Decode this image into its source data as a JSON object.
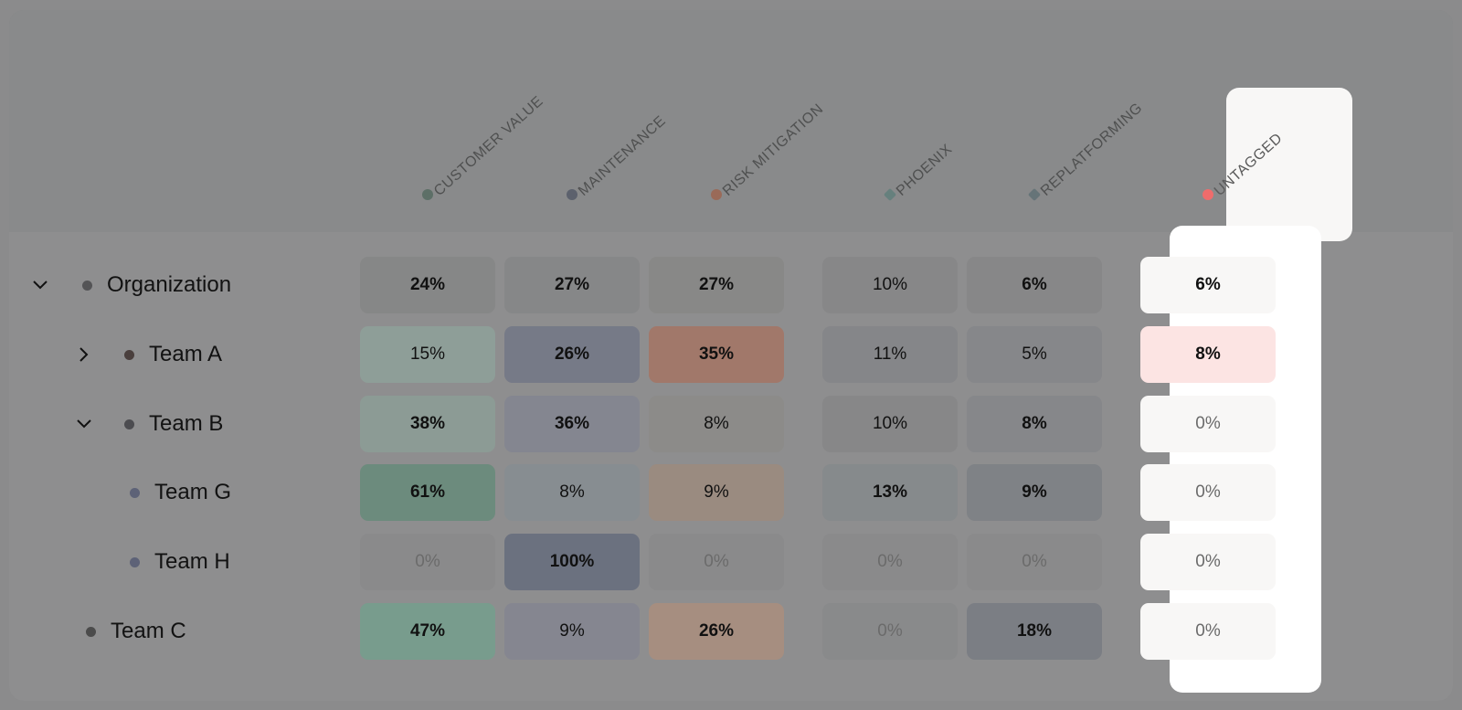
{
  "columns": [
    {
      "label": "CUSTOMER VALUE",
      "dot_color": "#5d6f67",
      "dot_shape": "circle"
    },
    {
      "label": "MAINTENANCE",
      "dot_color": "#5c616d",
      "dot_shape": "circle"
    },
    {
      "label": "RISK MITIGATION",
      "dot_color": "#9a6a58",
      "dot_shape": "circle"
    },
    {
      "label": "PHOENIX",
      "dot_color": "#66807d",
      "dot_shape": "diamond"
    },
    {
      "label": "REPLATFORMING",
      "dot_color": "#667478",
      "dot_shape": "diamond"
    },
    {
      "label": "UNTAGGED",
      "dot_color": "#ef6c6c",
      "dot_shape": "circle"
    }
  ],
  "rows": [
    {
      "name": "Organization",
      "chevron": "down",
      "dot_color": "#545456",
      "values": [
        "24%",
        "27%",
        "27%",
        "10%",
        "6%",
        "6%"
      ]
    },
    {
      "name": "Team A",
      "chevron": "right",
      "dot_color": "#4a3f3d",
      "values": [
        "15%",
        "26%",
        "35%",
        "11%",
        "5%",
        "8%"
      ]
    },
    {
      "name": "Team B",
      "chevron": "down",
      "dot_color": "#4c4c50",
      "values": [
        "38%",
        "36%",
        "8%",
        "10%",
        "8%",
        "0%"
      ]
    },
    {
      "name": "Team G",
      "chevron": "",
      "dot_color": "#5d6277",
      "values": [
        "61%",
        "8%",
        "9%",
        "13%",
        "9%",
        "0%"
      ]
    },
    {
      "name": "Team H",
      "chevron": "",
      "dot_color": "#5d6277",
      "values": [
        "0%",
        "100%",
        "0%",
        "0%",
        "0%",
        "0%"
      ]
    },
    {
      "name": "Team C",
      "chevron": "",
      "dot_color": "#4b4b4b",
      "values": [
        "47%",
        "9%",
        "26%",
        "0%",
        "18%",
        "0%"
      ]
    }
  ],
  "cell_colors": [
    [
      "#868787",
      "#868788",
      "#888887",
      "#878788",
      "#878788",
      "#f8f7f6"
    ],
    [
      "#8e9e98",
      "#767a87",
      "#a1786a",
      "#858689",
      "#86878a",
      "#fce4e3"
    ],
    [
      "#8c9b95",
      "#848690",
      "#8c8b89",
      "#878788",
      "#86878a",
      "#f8f7f6"
    ],
    [
      "#6c8b7d",
      "#878d91",
      "#9a8b80",
      "#868a8c",
      "#7f8286",
      "#f8f7f6"
    ],
    [
      "#8a8a8b",
      "#6b717f",
      "#8a8a8b",
      "#8a8a8b",
      "#8a8a8b",
      "#f8f7f6"
    ],
    [
      "#789c8d",
      "#858690",
      "#a68e80",
      "#898a8b",
      "#7b7e84",
      "#f8f7f6"
    ]
  ],
  "bold_cells": [
    [
      true,
      true,
      true,
      false,
      true,
      true
    ],
    [
      false,
      true,
      true,
      false,
      false,
      true
    ],
    [
      true,
      true,
      false,
      false,
      true,
      false
    ],
    [
      true,
      false,
      false,
      true,
      true,
      false
    ],
    [
      false,
      true,
      false,
      false,
      false,
      false
    ],
    [
      true,
      false,
      true,
      false,
      true,
      false
    ]
  ],
  "light_cells": [
    [
      false,
      false,
      false,
      false,
      false,
      false
    ],
    [
      false,
      false,
      false,
      false,
      false,
      false
    ],
    [
      false,
      false,
      false,
      false,
      false,
      true
    ],
    [
      false,
      false,
      false,
      false,
      false,
      true
    ],
    [
      true,
      false,
      true,
      true,
      true,
      true
    ],
    [
      false,
      false,
      false,
      true,
      false,
      true
    ]
  ]
}
